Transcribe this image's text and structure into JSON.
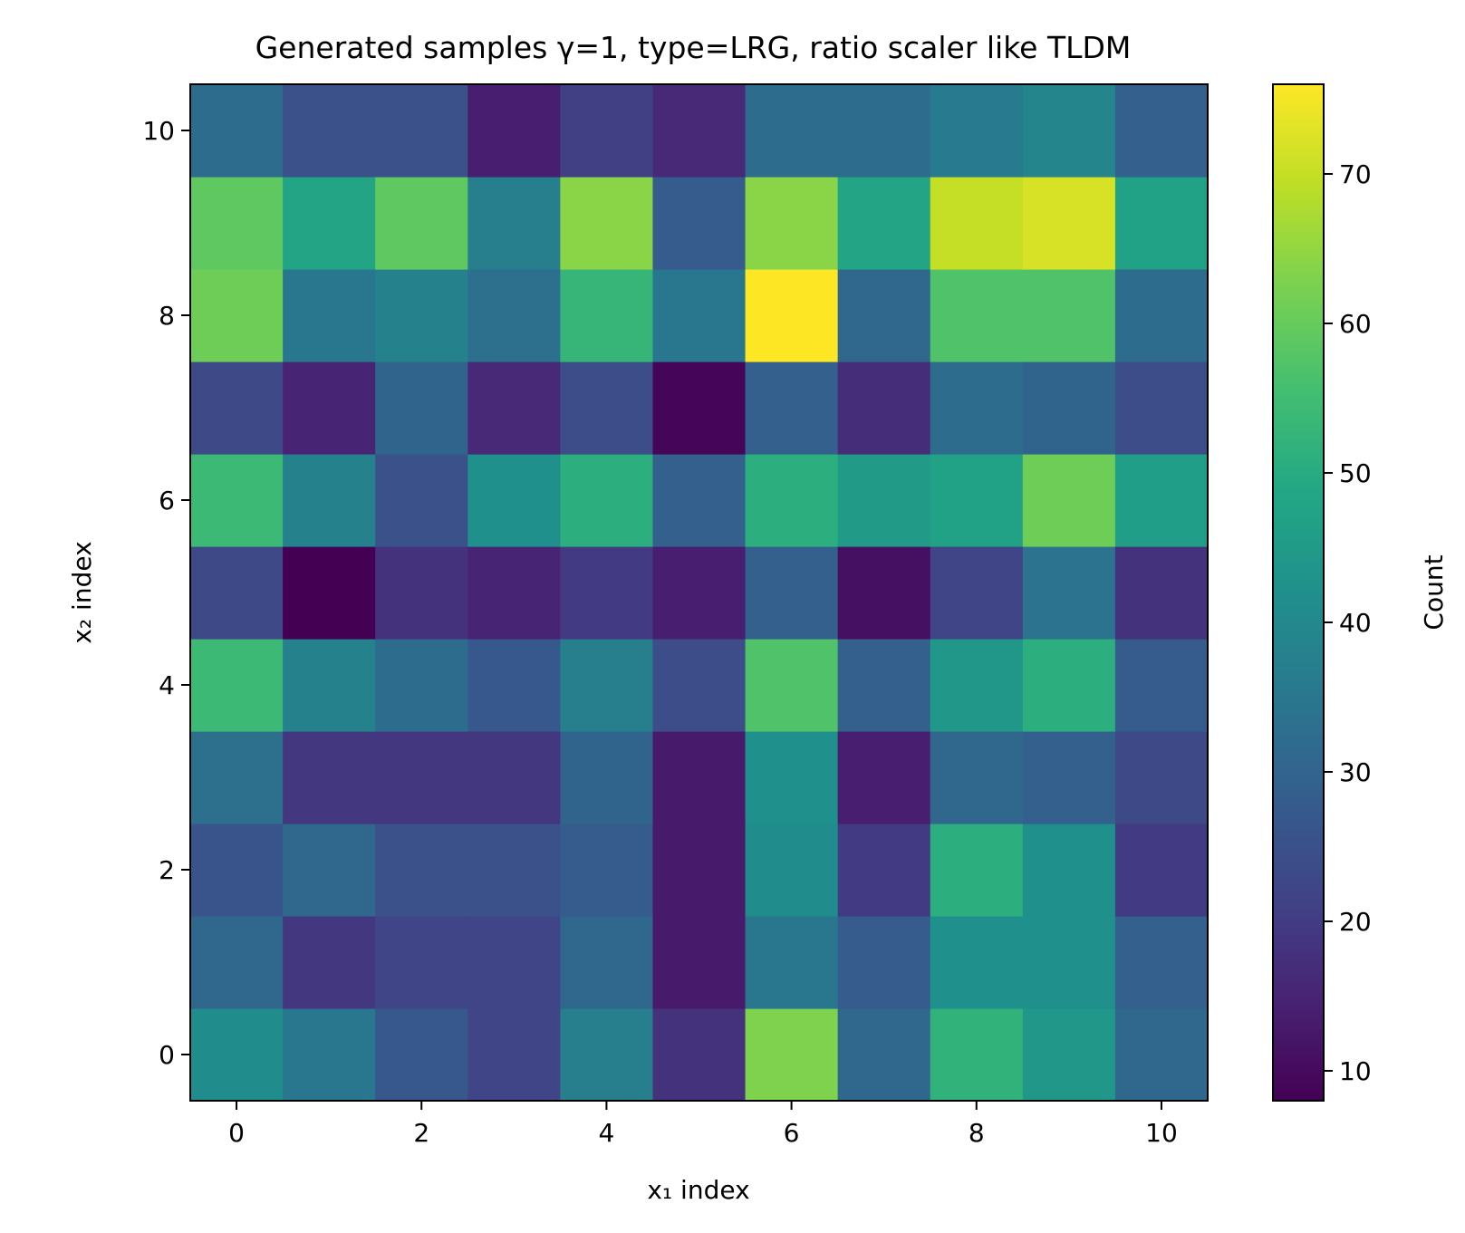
{
  "chart_data": {
    "type": "heatmap",
    "title": "Generated samples γ=1, type=LRG, ratio scaler like TLDM",
    "xlabel": "x₁ index",
    "ylabel": "x₂ index",
    "x": [
      0,
      1,
      2,
      3,
      4,
      5,
      6,
      7,
      8,
      9,
      10
    ],
    "y": [
      0,
      1,
      2,
      3,
      4,
      5,
      6,
      7,
      8,
      9,
      10
    ],
    "xlim": [
      -0.5,
      10.5
    ],
    "ylim": [
      -0.5,
      10.5
    ],
    "xticks": [
      0,
      2,
      4,
      6,
      8,
      10
    ],
    "yticks": [
      0,
      2,
      4,
      6,
      8,
      10
    ],
    "values": [
      [
        41,
        35,
        27,
        22,
        37,
        18,
        63,
        31,
        52,
        44,
        31
      ],
      [
        31,
        19,
        22,
        22,
        31,
        13,
        35,
        28,
        42,
        42,
        29
      ],
      [
        26,
        31,
        25,
        25,
        28,
        13,
        41,
        20,
        51,
        42,
        20
      ],
      [
        33,
        19,
        19,
        19,
        30,
        13,
        42,
        14,
        31,
        29,
        23
      ],
      [
        54,
        38,
        32,
        27,
        37,
        24,
        57,
        29,
        44,
        51,
        28
      ],
      [
        23,
        8,
        18,
        15,
        20,
        14,
        29,
        11,
        22,
        34,
        18
      ],
      [
        54,
        38,
        25,
        42,
        51,
        29,
        51,
        45,
        47,
        61,
        46
      ],
      [
        23,
        15,
        30,
        16,
        24,
        9,
        29,
        17,
        32,
        30,
        24
      ],
      [
        61,
        35,
        38,
        33,
        53,
        35,
        76,
        31,
        57,
        57,
        32
      ],
      [
        59,
        48,
        59,
        37,
        64,
        28,
        64,
        48,
        70,
        72,
        47
      ],
      [
        32,
        25,
        25,
        14,
        21,
        16,
        32,
        32,
        36,
        39,
        29
      ]
    ],
    "colormap": "viridis",
    "colorbar": {
      "label": "Count",
      "vmin": 8,
      "vmax": 76,
      "ticks": [
        10,
        20,
        30,
        40,
        50,
        60,
        70
      ]
    }
  }
}
